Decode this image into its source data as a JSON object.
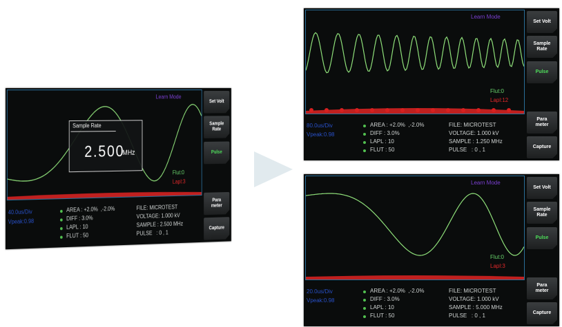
{
  "screens": [
    {
      "learn_mode": "Learn Mode",
      "buttons": [
        "Set Volt",
        "Sample\nRate",
        "Pulse",
        "Para\nmeter",
        "Capture"
      ],
      "flut": "Flut:0",
      "lapl": "Lapl:3",
      "status": [
        "40.0us/Div",
        "Vpeak:0.98"
      ],
      "params": [
        "AREA : +2.0%  ,-2.0%",
        "DIFF : 3.0%",
        "LAPL : 10",
        "FLUT : 50"
      ],
      "info": [
        "FILE: MICROTEST",
        "VOLTAGE: 1.000 kV",
        "SAMPLE : 2.500 MHz",
        "PULSE   : 0 , 1"
      ],
      "dialog": {
        "title": "Sample Rate",
        "value": "2.500",
        "unit": "MHz"
      }
    },
    {
      "learn_mode": "Learn Mode",
      "buttons": [
        "Set Volt",
        "Sample\nRate",
        "Pulse",
        "Para\nmeter",
        "Capture"
      ],
      "flut": "Flut:0",
      "lapl": "Lapl:12",
      "status": [
        "80.0us/Div",
        "Vpeak:0.98"
      ],
      "params": [
        "AREA : +2.0%  ,-2.0%",
        "DIFF : 3.0%",
        "LAPL : 10",
        "FLUT : 50"
      ],
      "info": [
        "FILE: MICROTEST",
        "VOLTAGE: 1.000 kV",
        "SAMPLE : 1.250 MHz",
        "PULSE   : 0 , 1"
      ]
    },
    {
      "learn_mode": "Learn Mode",
      "buttons": [
        "Set Volt",
        "Sample\nRate",
        "Pulse",
        "Para\nmeter",
        "Capture"
      ],
      "flut": "Flut:0",
      "lapl": "Lapl:3",
      "status": [
        "20.0us/Div",
        "Vpeak:0.98"
      ],
      "params": [
        "AREA : +2.0%  ,-2.0%",
        "DIFF : 3.0%",
        "LAPL : 10",
        "FLUT : 50"
      ],
      "info": [
        "FILE: MICROTEST",
        "VOLTAGE: 1.000 kV",
        "SAMPLE : 5.000 MHz",
        "PULSE   : 0 , 1"
      ]
    }
  ]
}
